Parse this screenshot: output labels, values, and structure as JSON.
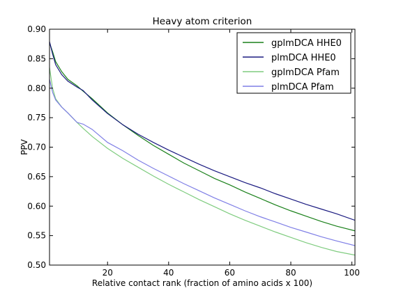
{
  "chart_data": {
    "type": "line",
    "title": "Heavy atom criterion",
    "xlabel": "Relative contact rank (fraction of amino acids x 100)",
    "ylabel": "PPV",
    "xlim": [
      1,
      101
    ],
    "ylim": [
      0.5,
      0.9
    ],
    "xticks": [
      20,
      40,
      60,
      80,
      100
    ],
    "xtick_labels": [
      "20",
      "40",
      "60",
      "80",
      "100"
    ],
    "yticks": [
      0.5,
      0.55,
      0.6,
      0.65,
      0.7,
      0.75,
      0.8,
      0.85,
      0.9
    ],
    "ytick_labels": [
      "0.50",
      "0.55",
      "0.60",
      "0.65",
      "0.70",
      "0.75",
      "0.80",
      "0.85",
      "0.90"
    ],
    "grid": false,
    "legend_position": "top-right",
    "series": [
      {
        "name": "gplmDCA HHE0",
        "color": "#1a801a",
        "x": [
          1,
          2,
          3,
          5,
          7,
          10,
          12,
          15,
          20,
          25,
          30,
          35,
          40,
          45,
          50,
          55,
          60,
          65,
          70,
          75,
          80,
          85,
          90,
          95,
          101
        ],
        "y": [
          0.877,
          0.862,
          0.845,
          0.828,
          0.815,
          0.804,
          0.795,
          0.782,
          0.758,
          0.738,
          0.72,
          0.703,
          0.688,
          0.673,
          0.66,
          0.647,
          0.636,
          0.624,
          0.613,
          0.602,
          0.592,
          0.583,
          0.574,
          0.566,
          0.558
        ]
      },
      {
        "name": "plmDCA HHE0",
        "color": "#1a1a80",
        "x": [
          1,
          2,
          3,
          5,
          7,
          10,
          12,
          15,
          20,
          25,
          30,
          35,
          40,
          45,
          50,
          55,
          60,
          65,
          70,
          75,
          80,
          85,
          90,
          95,
          101
        ],
        "y": [
          0.879,
          0.858,
          0.84,
          0.823,
          0.812,
          0.802,
          0.796,
          0.78,
          0.757,
          0.738,
          0.722,
          0.708,
          0.695,
          0.683,
          0.671,
          0.66,
          0.65,
          0.64,
          0.631,
          0.621,
          0.612,
          0.603,
          0.595,
          0.587,
          0.576
        ]
      },
      {
        "name": "gplmDCA Pfam",
        "color": "#7fcc7f",
        "x": [
          1,
          2,
          3,
          5,
          7,
          10,
          12,
          15,
          20,
          25,
          30,
          35,
          40,
          45,
          50,
          55,
          60,
          65,
          70,
          75,
          80,
          85,
          90,
          95,
          101
        ],
        "y": [
          0.835,
          0.8,
          0.782,
          0.768,
          0.758,
          0.742,
          0.732,
          0.718,
          0.698,
          0.681,
          0.666,
          0.651,
          0.637,
          0.624,
          0.611,
          0.599,
          0.587,
          0.576,
          0.566,
          0.556,
          0.547,
          0.538,
          0.53,
          0.523,
          0.517
        ]
      },
      {
        "name": "plmDCA Pfam",
        "color": "#7f7fe6",
        "x": [
          1,
          2,
          3,
          5,
          7,
          10,
          12,
          15,
          20,
          25,
          30,
          35,
          40,
          45,
          50,
          55,
          60,
          65,
          70,
          75,
          80,
          85,
          90,
          95,
          101
        ],
        "y": [
          0.815,
          0.793,
          0.78,
          0.768,
          0.758,
          0.742,
          0.739,
          0.73,
          0.708,
          0.694,
          0.678,
          0.664,
          0.651,
          0.638,
          0.626,
          0.614,
          0.603,
          0.592,
          0.582,
          0.573,
          0.564,
          0.556,
          0.548,
          0.541,
          0.533
        ]
      }
    ]
  }
}
